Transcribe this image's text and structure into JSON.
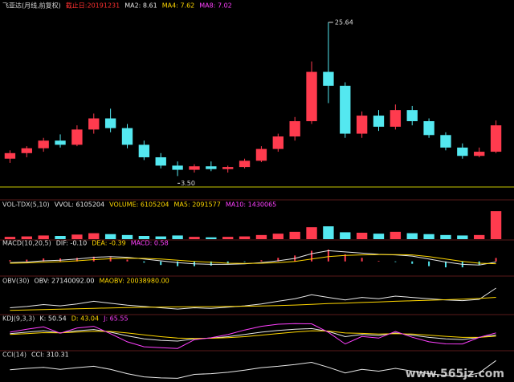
{
  "chart_data": [
    {
      "type": "candlestick",
      "header": [
        {
          "text": "飞亚达(月线,前复权)",
          "color": "#d8d8d8"
        },
        {
          "text": "截止日:20191231",
          "color": "#ff3030"
        },
        {
          "text": "MA2: 8.61",
          "color": "#e8e8e8"
        },
        {
          "text": "MA4: 7.62",
          "color": "#ffd700"
        },
        {
          "text": "MA8: 7.02",
          "color": "#ff40ff"
        }
      ],
      "max_label": "25.64",
      "min_label": "3.50",
      "open": [
        6.0,
        6.8,
        7.5,
        8.6,
        8.0,
        10.2,
        11.8,
        10.4,
        8.0,
        6.2,
        5.0,
        4.4,
        4.9,
        4.5,
        4.8,
        5.7,
        7.4,
        9.2,
        11.4,
        18.5,
        16.5,
        9.6,
        12.2,
        10.6,
        13.0,
        11.4,
        9.4,
        7.6,
        6.4,
        7.0
      ],
      "high": [
        7.2,
        7.8,
        9.0,
        9.5,
        10.8,
        12.5,
        13.2,
        11.0,
        8.6,
        6.8,
        5.6,
        5.2,
        5.6,
        5.0,
        6.0,
        7.8,
        9.6,
        12.0,
        20.0,
        25.64,
        17.0,
        12.8,
        13.0,
        13.8,
        13.6,
        11.8,
        9.8,
        8.2,
        7.6,
        11.5
      ],
      "low": [
        5.4,
        6.2,
        7.0,
        7.6,
        7.8,
        9.6,
        9.8,
        7.5,
        5.8,
        4.6,
        3.5,
        4.0,
        4.2,
        4.0,
        4.6,
        5.5,
        7.0,
        8.6,
        11.0,
        14.0,
        9.0,
        9.0,
        10.0,
        10.2,
        10.8,
        9.0,
        7.2,
        6.0,
        6.2,
        6.8
      ],
      "close": [
        6.8,
        7.5,
        8.6,
        8.0,
        10.2,
        11.8,
        10.4,
        8.0,
        6.2,
        5.0,
        4.4,
        4.9,
        4.5,
        4.8,
        5.7,
        7.4,
        9.2,
        11.4,
        18.5,
        16.5,
        9.6,
        12.2,
        10.6,
        13.0,
        11.4,
        9.4,
        7.6,
        6.4,
        7.0,
        10.8
      ],
      "up_color": "#ff3b4e",
      "down_color": "#54e8f0",
      "ylim": [
        2.5,
        27
      ]
    },
    {
      "type": "bar",
      "header": [
        {
          "text": "VOL-TDX(5,10)",
          "color": "#d8d8d8"
        },
        {
          "text": "VVOL: 6105204",
          "color": "#e8e8e8"
        },
        {
          "text": "VOLUME: 6105204",
          "color": "#ffd700"
        },
        {
          "text": "MA5: 2091577",
          "color": "#ffd700"
        },
        {
          "text": "MA10: 1430065",
          "color": "#ff40ff"
        }
      ],
      "values": [
        500000,
        600000,
        800000,
        700000,
        1000000,
        1300000,
        1100000,
        900000,
        700000,
        600000,
        800000,
        500000,
        400000,
        500000,
        600000,
        900000,
        1200000,
        1600000,
        2600000,
        2800000,
        1500000,
        1400000,
        1200000,
        1600000,
        1300000,
        1100000,
        900000,
        800000,
        900000,
        6105204
      ],
      "ylim": [
        0,
        6300000
      ]
    },
    {
      "type": "line",
      "header": [
        {
          "text": "MACD(10,20,5)",
          "color": "#d8d8d8"
        },
        {
          "text": "DIF: -0.10",
          "color": "#e8e8e8"
        },
        {
          "text": "DEA: -0.39",
          "color": "#ffd700"
        },
        {
          "text": "MACD: 0.58",
          "color": "#ff40ff"
        }
      ],
      "series": [
        {
          "color": "#e8e8e8",
          "values": [
            -0.2,
            -0.1,
            0.1,
            0.2,
            0.4,
            0.7,
            0.8,
            0.7,
            0.4,
            0.1,
            -0.2,
            -0.4,
            -0.5,
            -0.5,
            -0.4,
            -0.2,
            0.1,
            0.5,
            1.3,
            1.8,
            1.6,
            1.4,
            1.2,
            1.1,
            0.9,
            0.4,
            -0.1,
            -0.5,
            -0.6,
            -0.1
          ]
        },
        {
          "color": "#ffd700",
          "values": [
            -0.3,
            -0.25,
            -0.15,
            -0.05,
            0.1,
            0.3,
            0.45,
            0.55,
            0.5,
            0.4,
            0.2,
            0.0,
            -0.15,
            -0.3,
            -0.35,
            -0.3,
            -0.2,
            0.0,
            0.4,
            0.8,
            1.0,
            1.1,
            1.15,
            1.15,
            1.1,
            0.8,
            0.4,
            0.0,
            -0.3,
            -0.39
          ]
        }
      ],
      "histogram": [
        0.2,
        0.3,
        0.5,
        0.5,
        0.6,
        0.8,
        0.7,
        0.3,
        -0.2,
        -0.6,
        -0.8,
        -0.8,
        -0.7,
        -0.4,
        -0.1,
        0.2,
        0.6,
        1.0,
        1.8,
        2.0,
        1.2,
        0.6,
        0.1,
        -0.1,
        -0.4,
        -0.8,
        -1.0,
        -1.0,
        -0.6,
        0.58
      ],
      "up_color": "#ff3b4e",
      "down_color": "#54e8f0",
      "ylim": [
        -2.2,
        2.4
      ]
    },
    {
      "type": "line",
      "header": [
        {
          "text": "OBV(30)",
          "color": "#d8d8d8"
        },
        {
          "text": "OBV: 27140092.00",
          "color": "#e8e8e8"
        },
        {
          "text": "MAOBV: 20038980.00",
          "color": "#ffd700"
        }
      ],
      "series": [
        {
          "color": "#e8e8e8",
          "values": [
            12000000,
            13000000,
            14500000,
            13500000,
            15000000,
            17000000,
            15500000,
            14000000,
            13000000,
            12000000,
            11000000,
            12000000,
            11500000,
            12500000,
            13500000,
            15000000,
            17000000,
            19000000,
            22000000,
            20000000,
            18000000,
            20000000,
            19000000,
            21000000,
            20000000,
            19000000,
            18000000,
            17500000,
            18500000,
            27140092
          ]
        },
        {
          "color": "#ffd700",
          "values": [
            10000000,
            10300000,
            10600000,
            10900000,
            11200000,
            11600000,
            11900000,
            12200000,
            12400000,
            12600000,
            12700000,
            12800000,
            12900000,
            13000000,
            13200000,
            13400000,
            13700000,
            14100000,
            14700000,
            15200000,
            15600000,
            16100000,
            16500000,
            17000000,
            17400000,
            17800000,
            18200000,
            18600000,
            19200000,
            20038980
          ]
        }
      ],
      "ylim": [
        8000000,
        29000000
      ]
    },
    {
      "type": "line",
      "header": [
        {
          "text": "KDJ(9,3,3)",
          "color": "#d8d8d8"
        },
        {
          "text": "K: 50.54",
          "color": "#e8e8e8"
        },
        {
          "text": "D: 43.04",
          "color": "#ffd700"
        },
        {
          "text": "J: 65.55",
          "color": "#ff40ff"
        }
      ],
      "series": [
        {
          "color": "#e8e8e8",
          "values": [
            60,
            70,
            80,
            65,
            80,
            88,
            70,
            45,
            25,
            15,
            10,
            25,
            30,
            40,
            55,
            70,
            82,
            90,
            95,
            75,
            40,
            55,
            48,
            65,
            50,
            35,
            25,
            20,
            35,
            50.54
          ]
        },
        {
          "color": "#ffd700",
          "values": [
            55,
            60,
            67,
            66,
            71,
            77,
            75,
            65,
            52,
            40,
            30,
            28,
            29,
            33,
            40,
            50,
            61,
            71,
            79,
            78,
            65,
            62,
            57,
            60,
            57,
            50,
            42,
            35,
            35,
            43.04
          ]
        },
        {
          "color": "#ff40ff",
          "values": [
            70,
            90,
            106,
            63,
            98,
            110,
            60,
            5,
            -29,
            -35,
            -40,
            19,
            32,
            54,
            85,
            110,
            124,
            128,
            127,
            69,
            -10,
            41,
            30,
            75,
            36,
            5,
            -9,
            -10,
            35,
            65.55
          ]
        }
      ],
      "ylim": [
        -50,
        135
      ]
    },
    {
      "type": "line",
      "header": [
        {
          "text": "CCI(14)",
          "color": "#d8d8d8"
        },
        {
          "text": "CCI: 310.31",
          "color": "#e8e8e8"
        }
      ],
      "series": [
        {
          "color": "#e8e8e8",
          "values": [
            50,
            90,
            120,
            60,
            110,
            150,
            60,
            -60,
            -150,
            -180,
            -190,
            -80,
            -60,
            -20,
            40,
            110,
            150,
            200,
            260,
            120,
            -40,
            60,
            10,
            90,
            10,
            -60,
            -110,
            -140,
            -40,
            310.31
          ]
        }
      ],
      "ylim": [
        -250,
        340
      ]
    }
  ],
  "watermark": "www.565jz.com"
}
